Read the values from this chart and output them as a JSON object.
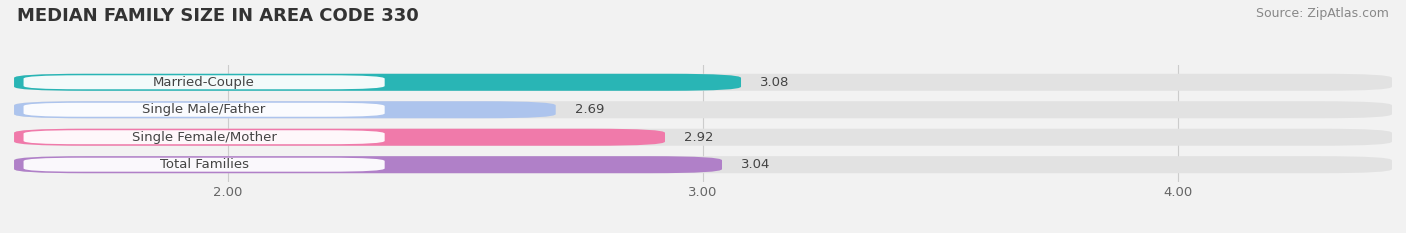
{
  "title": "MEDIAN FAMILY SIZE IN AREA CODE 330",
  "source": "Source: ZipAtlas.com",
  "categories": [
    "Married-Couple",
    "Single Male/Father",
    "Single Female/Mother",
    "Total Families"
  ],
  "values": [
    3.08,
    2.69,
    2.92,
    3.04
  ],
  "bar_colors": [
    "#29b5b5",
    "#adc4ed",
    "#f07aaa",
    "#b080c8"
  ],
  "xlim_left": 1.55,
  "xlim_right": 4.45,
  "xticks": [
    2.0,
    3.0,
    4.0
  ],
  "xtick_labels": [
    "2.00",
    "3.00",
    "4.00"
  ],
  "background_color": "#f2f2f2",
  "bar_background_color": "#e2e2e2",
  "title_fontsize": 13,
  "source_fontsize": 9,
  "label_fontsize": 9.5,
  "value_fontsize": 9.5
}
